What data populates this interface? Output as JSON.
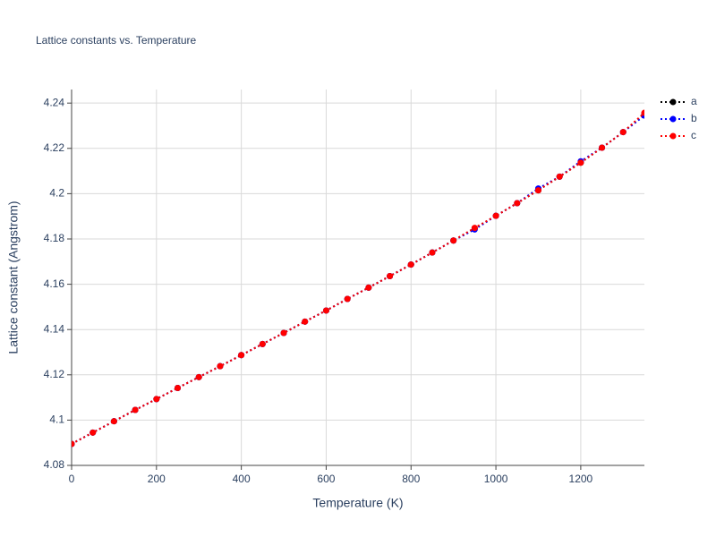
{
  "chart_data": {
    "type": "line",
    "title": "Lattice constants vs. Temperature",
    "x_label": "Temperature (K)",
    "y_label": "Lattice constant (Angstrom)",
    "x": [
      0,
      50,
      100,
      150,
      200,
      250,
      300,
      350,
      400,
      450,
      500,
      550,
      600,
      650,
      700,
      750,
      800,
      850,
      900,
      950,
      1000,
      1050,
      1100,
      1150,
      1200,
      1250,
      1300,
      1350
    ],
    "series": [
      {
        "name": "a",
        "color": "#000000",
        "values": [
          4.0895,
          4.0945,
          4.0995,
          4.1045,
          4.1093,
          4.1142,
          4.119,
          4.1238,
          4.1287,
          4.1336,
          4.1385,
          4.1435,
          4.1484,
          4.1535,
          4.1585,
          4.1636,
          4.1687,
          4.174,
          4.1793,
          4.1847,
          4.1902,
          4.1958,
          4.2015,
          4.2075,
          4.2137,
          4.2203,
          4.2272,
          4.2352
        ]
      },
      {
        "name": "b",
        "color": "#0000ff",
        "values": [
          4.0895,
          4.0945,
          4.0995,
          4.1045,
          4.1093,
          4.1142,
          4.119,
          4.1238,
          4.1287,
          4.1336,
          4.1385,
          4.1435,
          4.1484,
          4.1535,
          4.1585,
          4.1636,
          4.1687,
          4.174,
          4.1793,
          4.1842,
          4.1902,
          4.1958,
          4.2023,
          4.2075,
          4.2143,
          4.2203,
          4.2272,
          4.2345
        ]
      },
      {
        "name": "c",
        "color": "#ff0000",
        "values": [
          4.0895,
          4.0945,
          4.0995,
          4.1045,
          4.1093,
          4.1142,
          4.119,
          4.1238,
          4.1287,
          4.1336,
          4.1385,
          4.1435,
          4.1484,
          4.1535,
          4.1585,
          4.1636,
          4.1687,
          4.174,
          4.1793,
          4.1849,
          4.1902,
          4.1958,
          4.2015,
          4.2075,
          4.2137,
          4.2203,
          4.2272,
          4.2357
        ]
      }
    ],
    "xlim": [
      0,
      1350
    ],
    "xticks": [
      0,
      200,
      400,
      600,
      800,
      1000,
      1200
    ],
    "ylim": [
      4.08,
      4.246
    ],
    "yticks": [
      4.08,
      4.1,
      4.12,
      4.14,
      4.16,
      4.18,
      4.2,
      4.22,
      4.24
    ],
    "grid": true,
    "legend": "top-right"
  }
}
